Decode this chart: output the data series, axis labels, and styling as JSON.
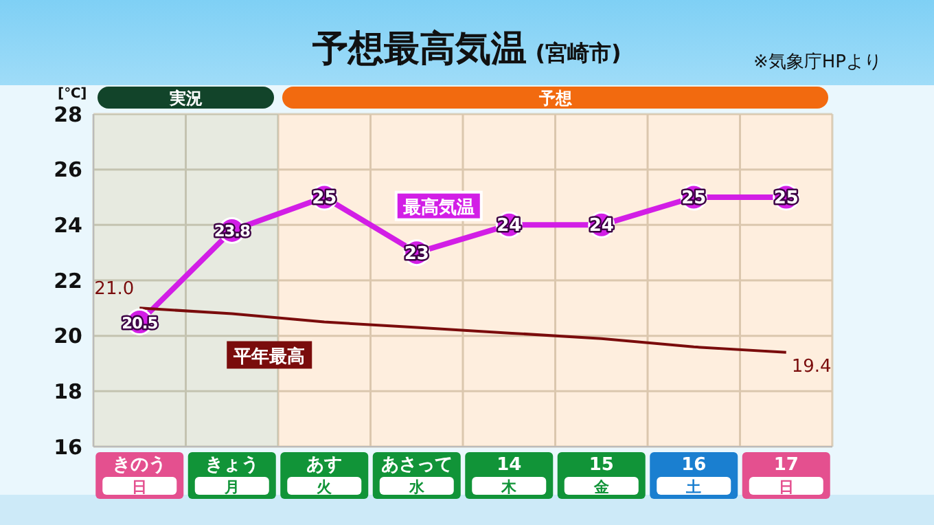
{
  "chart_data": {
    "type": "line",
    "title": "予想最高気温",
    "subtitle": "(宮崎市)",
    "ylabel": "[℃]",
    "annotations": [
      "※気象庁HPより"
    ],
    "categories": [
      "きのう日",
      "きょう月",
      "あす火",
      "あさって水",
      "14木",
      "15金",
      "16土",
      "17日"
    ],
    "series": [
      {
        "name": "最高気温",
        "color": "#d21ee6",
        "values": [
          20.5,
          23.8,
          25,
          23,
          24,
          24,
          25,
          25
        ],
        "marker": "circle",
        "data_labels": true
      },
      {
        "name": "平年最高",
        "color": "#7a0c0c",
        "values": [
          21.0,
          20.8,
          20.5,
          20.3,
          20.1,
          19.9,
          19.6,
          19.4
        ],
        "marker": "none",
        "value_labels": [
          "21.0",
          null,
          null,
          null,
          null,
          null,
          null,
          "19.4"
        ]
      }
    ],
    "bands": [
      {
        "axis": "x",
        "from": "きのう日",
        "to": "きょう月",
        "label": "実況",
        "color": "#12442a"
      },
      {
        "axis": "x",
        "from": "あす火",
        "to": "17日",
        "label": "予想",
        "color": "#f26a0f"
      }
    ],
    "ylim": [
      16,
      28
    ],
    "yticks": [
      16,
      18,
      20,
      22,
      24,
      26,
      28
    ],
    "grid": true,
    "legend": false
  }
}
